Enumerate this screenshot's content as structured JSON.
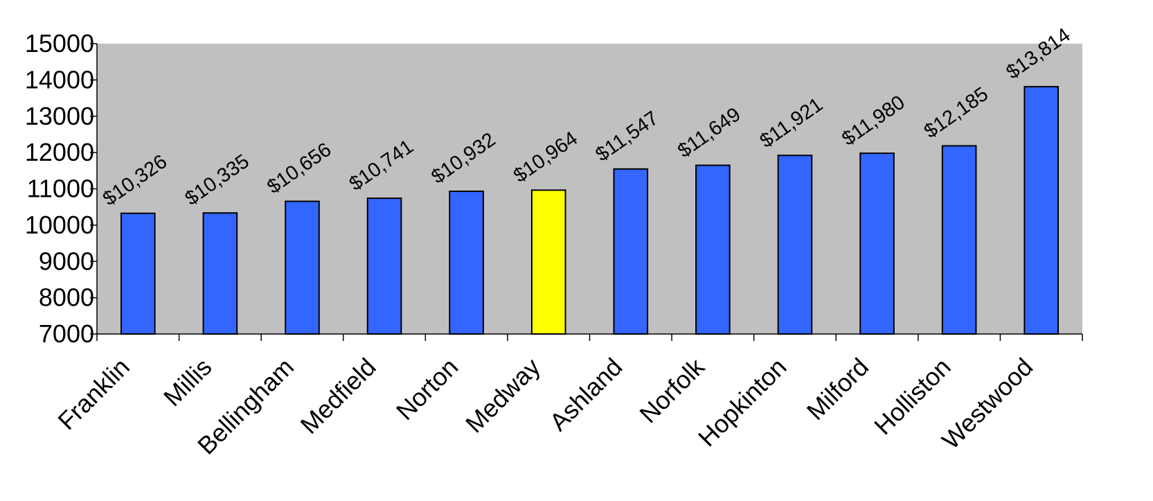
{
  "chart_data": {
    "type": "bar",
    "categories": [
      "Franklin",
      "Millis",
      "Bellingham",
      "Medfield",
      "Norton",
      "Medway",
      "Ashland",
      "Norfolk",
      "Hopkinton",
      "Milford",
      "Holliston",
      "Westwood"
    ],
    "values": [
      10326,
      10335,
      10656,
      10741,
      10932,
      10964,
      11547,
      11649,
      11921,
      11980,
      12185,
      13814
    ],
    "data_labels": [
      "$10,326",
      "$10,335",
      "$10,656",
      "$10,741",
      "$10,932",
      "$10,964",
      "$11,547",
      "$11,649",
      "$11,921",
      "$11,980",
      "$12,185",
      "$13,814"
    ],
    "highlight_index": 5,
    "ylim": [
      7000,
      15000
    ],
    "yticks": [
      "7000",
      "8000",
      "9000",
      "10000",
      "11000",
      "12000",
      "13000",
      "14000",
      "15000"
    ],
    "grid": false,
    "legend": "none",
    "title": "",
    "xlabel": "",
    "ylabel": "",
    "colors": {
      "bar": "#3366ff",
      "highlight": "#ffff00",
      "plot_background": "#c0c0c0",
      "bar_outline": "#000000"
    }
  }
}
